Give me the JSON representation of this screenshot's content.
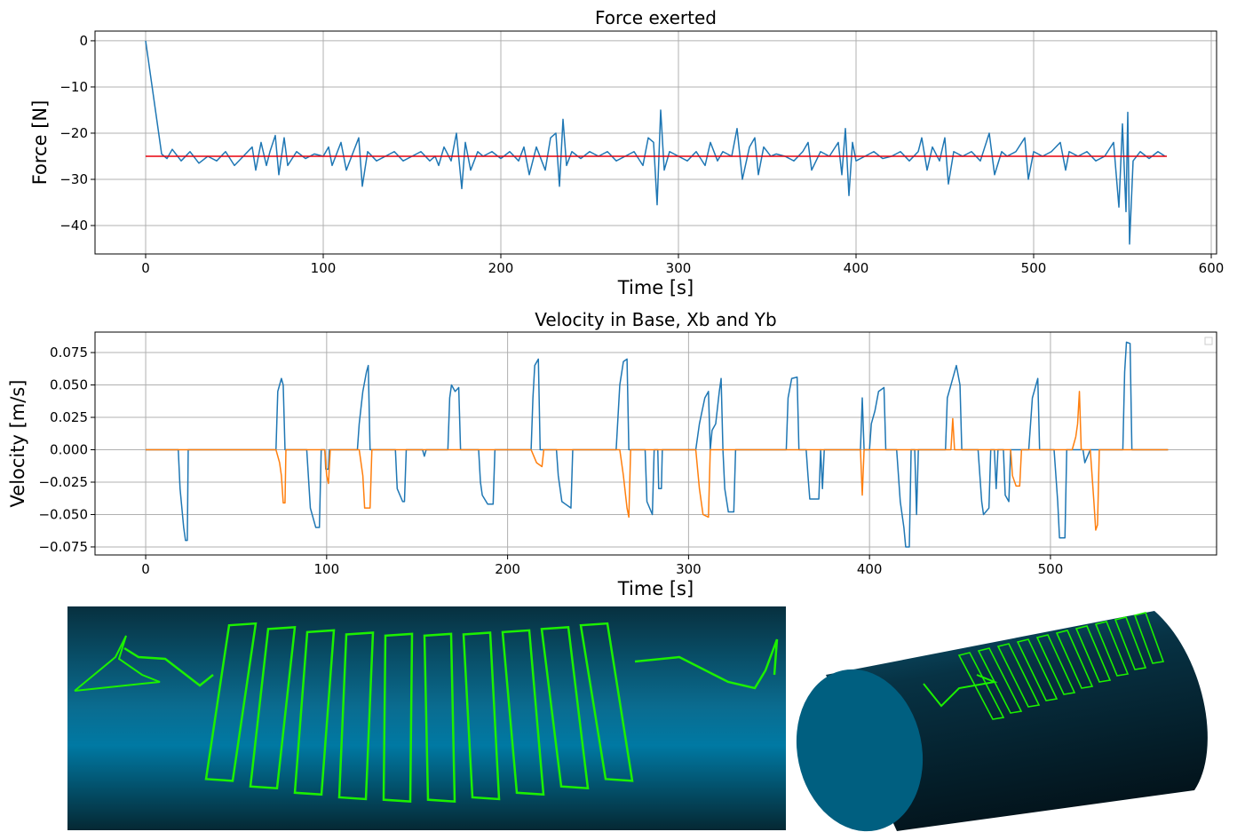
{
  "chart_data": [
    {
      "type": "line",
      "title": "Force exerted",
      "xlabel": "Time [s]",
      "ylabel": "Force [N]",
      "xlim": [
        -28.5,
        603
      ],
      "ylim": [
        -46.15,
        2.1
      ],
      "xticks": [
        0,
        100,
        200,
        300,
        400,
        500,
        600
      ],
      "yticks": [
        {
          "value": -40,
          "label": "−40"
        },
        {
          "value": -30,
          "label": "−30"
        },
        {
          "value": -20,
          "label": "−20"
        },
        {
          "value": -10,
          "label": "−10"
        },
        0
      ],
      "grid": true,
      "series": [
        {
          "color": "#1f77b4",
          "x": [
            0,
            9,
            12,
            15,
            20,
            25,
            30,
            35,
            40,
            45,
            50,
            55,
            60,
            62,
            65,
            68,
            70,
            73,
            75,
            78,
            80,
            85,
            90,
            95,
            100,
            103,
            105,
            110,
            113,
            117,
            120,
            122,
            125,
            130,
            135,
            140,
            145,
            150,
            155,
            160,
            163,
            165,
            168,
            172,
            175,
            178,
            180,
            183,
            187,
            190,
            195,
            200,
            205,
            210,
            213,
            216,
            220,
            225,
            228,
            231,
            233,
            235,
            237,
            240,
            245,
            250,
            255,
            260,
            265,
            270,
            275,
            280,
            283,
            286,
            288,
            290,
            292,
            295,
            300,
            305,
            310,
            315,
            318,
            322,
            325,
            330,
            333,
            336,
            340,
            343,
            345,
            348,
            352,
            355,
            360,
            365,
            370,
            373,
            375,
            380,
            385,
            390,
            392,
            394,
            396,
            398,
            400,
            405,
            410,
            415,
            420,
            425,
            430,
            435,
            437,
            440,
            443,
            447,
            450,
            452,
            455,
            460,
            465,
            470,
            475,
            478,
            482,
            485,
            490,
            495,
            497,
            500,
            505,
            510,
            515,
            518,
            520,
            525,
            530,
            535,
            540,
            545,
            548,
            550,
            552,
            553,
            554,
            556,
            560,
            565,
            570,
            574
          ],
          "values": [
            0,
            -24.5,
            -25.5,
            -23.5,
            -26,
            -24,
            -26.5,
            -25,
            -26,
            -24,
            -27,
            -25,
            -23,
            -28,
            -22,
            -27,
            -24,
            -20.5,
            -29,
            -21,
            -27,
            -24,
            -25.5,
            -24.5,
            -25,
            -23,
            -27,
            -22,
            -28,
            -24,
            -21,
            -31.5,
            -24,
            -26,
            -25,
            -24,
            -26,
            -25,
            -24,
            -26,
            -25,
            -27,
            -23,
            -26,
            -20,
            -32,
            -22,
            -28,
            -24,
            -25,
            -24,
            -25.5,
            -24,
            -26,
            -23,
            -29,
            -23,
            -28,
            -21,
            -20,
            -31.5,
            -17,
            -27,
            -24,
            -25.5,
            -24,
            -25,
            -24,
            -26,
            -25,
            -24,
            -27,
            -21,
            -22,
            -35.5,
            -15,
            -28,
            -24,
            -25,
            -26,
            -24,
            -27,
            -22,
            -26,
            -24,
            -25,
            -19,
            -30,
            -23,
            -21,
            -29,
            -23,
            -25,
            -24.5,
            -25,
            -26,
            -24,
            -22,
            -28,
            -24,
            -25,
            -22,
            -29,
            -19,
            -33.5,
            -22,
            -26,
            -25,
            -24,
            -25.5,
            -25,
            -24,
            -26,
            -24,
            -21,
            -28,
            -23,
            -26,
            -21,
            -31,
            -24,
            -25,
            -24,
            -26,
            -20,
            -29,
            -24,
            -25,
            -24,
            -21,
            -30,
            -24,
            -25,
            -24,
            -22,
            -28,
            -24,
            -25,
            -24,
            -26,
            -25,
            -22,
            -36,
            -18,
            -37,
            -15.5,
            -44,
            -26,
            -24,
            -25.5,
            -24,
            -25
          ]
        },
        {
          "color": "#e8000b",
          "x": [
            0,
            575
          ],
          "values": [
            -25,
            -25
          ]
        }
      ]
    },
    {
      "type": "line",
      "title": "Velocity in Base, Xb and Yb",
      "xlabel": "Time [s]",
      "ylabel": "Velocity [m/s]",
      "xlim": [
        -28,
        591.8
      ],
      "ylim": [
        -0.0812,
        0.0908
      ],
      "xticks": [
        0,
        100,
        200,
        300,
        400,
        500
      ],
      "yticks": [
        {
          "value": -0.075,
          "label": "−0.075"
        },
        {
          "value": -0.05,
          "label": "−0.050"
        },
        {
          "value": -0.025,
          "label": "−0.025"
        },
        {
          "value": 0,
          "label": "0.000"
        },
        0.025,
        {
          "value": 0.05,
          "label": "0.050"
        },
        0.075
      ],
      "grid": true,
      "legend": "upper right",
      "series": [
        {
          "color": "#1f77b4",
          "x": [
            0,
            18,
            19,
            21,
            22,
            23,
            23.5,
            72,
            73,
            75,
            76,
            77,
            89,
            91,
            94,
            96,
            97,
            99,
            99.5,
            101,
            101.5,
            117,
            118,
            120,
            122,
            123,
            124,
            138,
            139,
            142,
            143,
            144,
            153,
            154,
            155,
            167,
            168,
            169,
            171,
            173,
            174,
            184,
            185,
            186,
            189,
            192,
            193,
            213,
            214,
            215,
            217,
            218,
            227,
            228,
            230,
            235,
            236,
            260,
            262,
            264,
            266,
            267,
            276,
            277,
            280,
            281,
            283,
            283.5,
            285,
            285.5,
            304,
            306,
            309,
            311,
            312,
            313,
            315,
            317,
            318,
            319,
            320,
            322,
            325,
            326,
            354,
            355,
            357,
            360,
            361,
            365,
            366,
            367,
            372,
            373,
            374,
            375,
            395,
            396,
            397,
            400,
            401,
            403,
            405,
            408,
            409,
            415,
            417,
            419,
            420,
            422,
            423,
            425,
            426,
            427,
            442,
            443,
            445,
            447,
            448,
            450,
            451,
            460,
            462,
            463,
            466,
            467,
            469,
            470,
            471,
            474,
            475,
            477,
            478,
            488,
            490,
            492,
            493,
            494,
            502,
            504,
            505,
            508,
            509,
            518,
            519,
            522,
            540,
            541,
            542,
            544,
            545,
            565
          ],
          "values": [
            0,
            0,
            -0.03,
            -0.06,
            -0.07,
            -0.07,
            0,
            0,
            0.045,
            0.055,
            0.05,
            0,
            0,
            -0.045,
            -0.06,
            -0.06,
            0,
            0,
            -0.015,
            -0.015,
            0,
            0,
            0.02,
            0.045,
            0.06,
            0.065,
            0,
            0,
            -0.03,
            -0.04,
            -0.04,
            0,
            0,
            -0.005,
            0,
            0,
            0.04,
            0.05,
            0.045,
            0.048,
            0,
            0,
            -0.025,
            -0.035,
            -0.042,
            -0.042,
            0,
            0,
            0.04,
            0.065,
            0.07,
            0,
            0,
            -0.02,
            -0.04,
            -0.045,
            0,
            0,
            0.05,
            0.068,
            0.07,
            0,
            0,
            -0.04,
            -0.05,
            0,
            0,
            -0.03,
            -0.03,
            0,
            0,
            0.02,
            0.04,
            0.045,
            0,
            0.015,
            0.02,
            0.045,
            0.055,
            0,
            -0.03,
            -0.048,
            -0.048,
            0,
            0,
            0.04,
            0.055,
            0.056,
            0,
            0,
            -0.02,
            -0.038,
            -0.038,
            0,
            -0.03,
            0,
            0,
            0.04,
            0,
            0,
            0.02,
            0.03,
            0.045,
            0.048,
            0,
            0,
            -0.04,
            -0.06,
            -0.075,
            -0.075,
            0,
            0,
            -0.05,
            0,
            0,
            0.04,
            0.05,
            0.06,
            0.065,
            0.05,
            0,
            0,
            -0.04,
            -0.05,
            -0.045,
            0,
            0,
            -0.03,
            0,
            0,
            -0.035,
            -0.04,
            0,
            0,
            0.04,
            0.05,
            0.055,
            0,
            0,
            -0.04,
            -0.068,
            -0.068,
            0,
            0,
            -0.01,
            0,
            0,
            0.06,
            0.083,
            0.082,
            0,
            0
          ]
        },
        {
          "color": "#ff7f0e",
          "x": [
            0,
            72,
            74,
            75,
            76,
            77,
            77.5,
            99,
            100,
            101,
            102,
            118,
            120,
            121,
            124,
            125,
            213,
            216,
            219,
            220,
            262,
            264,
            266,
            267,
            268,
            304,
            306,
            308,
            311,
            312,
            395,
            396,
            397,
            445,
            446,
            447,
            478,
            479,
            481,
            483,
            484,
            512,
            514,
            515,
            516,
            517,
            522,
            524,
            525,
            526,
            527,
            565
          ],
          "values": [
            0,
            0,
            -0.01,
            -0.02,
            -0.041,
            -0.041,
            0,
            0,
            -0.02,
            -0.026,
            0,
            0,
            -0.02,
            -0.045,
            -0.045,
            0,
            0,
            -0.01,
            -0.013,
            0,
            0,
            -0.02,
            -0.045,
            -0.052,
            0,
            0,
            -0.03,
            -0.05,
            -0.052,
            0,
            0,
            -0.035,
            0,
            0,
            0.024,
            0,
            0,
            -0.02,
            -0.028,
            -0.028,
            0,
            0,
            0.01,
            0.02,
            0.045,
            0,
            0,
            -0.04,
            -0.062,
            -0.058,
            0,
            0
          ]
        }
      ]
    }
  ]
}
